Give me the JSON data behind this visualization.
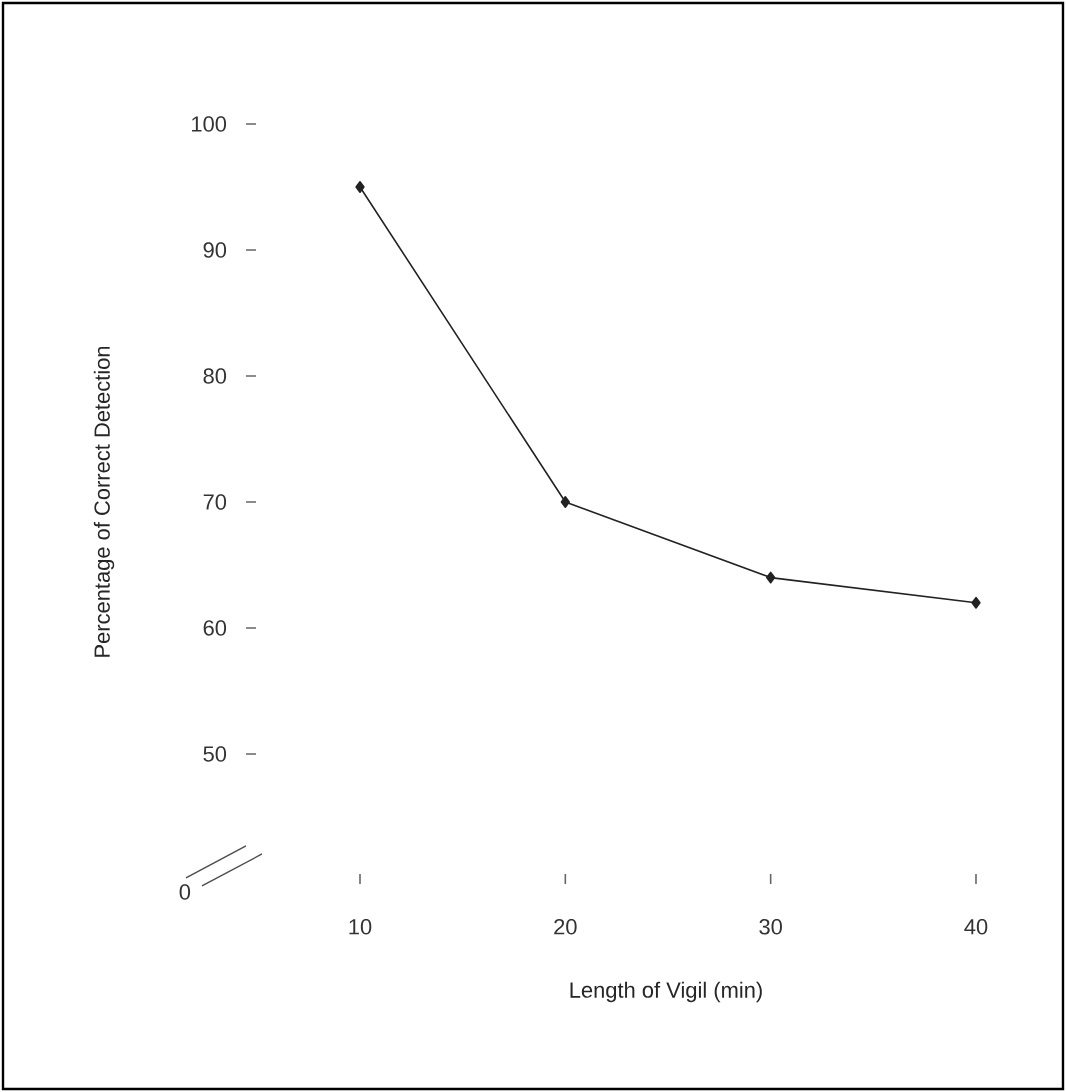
{
  "chart_data": {
    "type": "line",
    "xlabel": "Length of Vigil (min)",
    "ylabel": "Percentage of Correct Detection",
    "x": [
      10,
      20,
      30,
      40
    ],
    "series": [
      {
        "color": "#222222",
        "values": [
          95,
          70,
          64,
          62
        ]
      }
    ],
    "xlim": [
      10,
      40
    ],
    "ylim": [
      50,
      100
    ],
    "xticks": [
      10,
      20,
      30,
      40
    ],
    "yticks": [
      50,
      60,
      70,
      80,
      90,
      100
    ],
    "annotations": [
      "0"
    ],
    "marker": "diamond",
    "line_style": "solid"
  }
}
